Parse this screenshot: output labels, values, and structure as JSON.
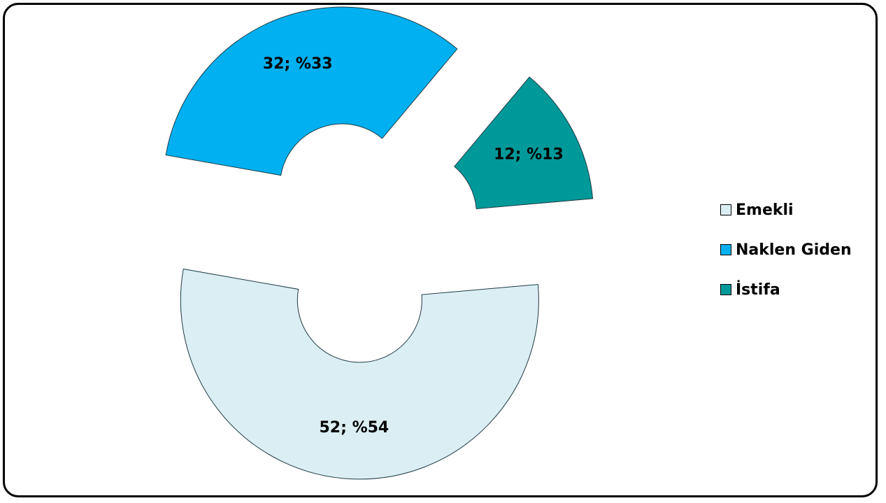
{
  "chart_data": {
    "type": "pie",
    "variant": "exploded-donut",
    "categories": [
      "Emekli",
      "Naklen Giden",
      "İstifa"
    ],
    "values": [
      52,
      32,
      12
    ],
    "percent_labels": [
      "%54",
      "%33",
      "%13"
    ],
    "data_labels": [
      "52; %54",
      "32; %33",
      "12; %13"
    ],
    "colors": [
      "#DAEEF3",
      "#00B0F0",
      "#009999"
    ],
    "legend": {
      "placement": "right",
      "entries": [
        "Emekli",
        "Naklen Giden",
        "İstifa"
      ]
    },
    "title": ""
  }
}
